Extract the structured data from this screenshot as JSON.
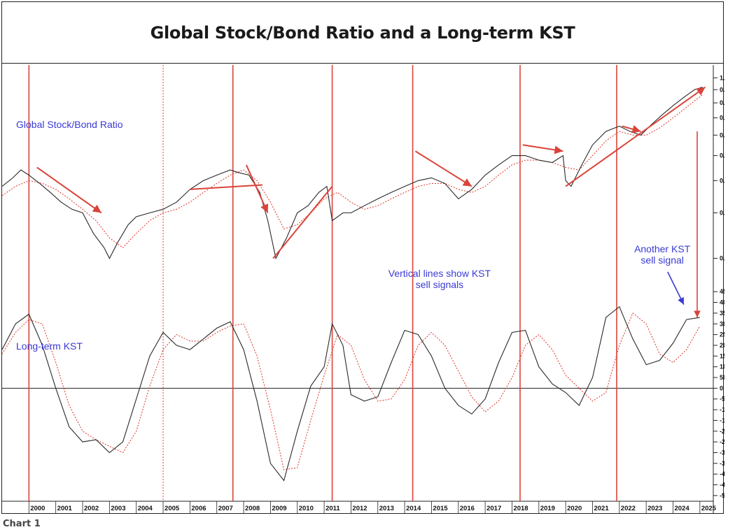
{
  "title": "Global Stock/Bond Ratio and a Long-term KST",
  "caption": "Chart 1",
  "colors": {
    "signal": "#d9443a",
    "price": "#2a2a2a",
    "average": "#e0453a",
    "annotation": "#3a3ad6"
  },
  "chart_data": {
    "type": "line",
    "x_range": [
      1999.0,
      2025.5
    ],
    "year_labels": [
      "2000",
      "2001",
      "2002",
      "2003",
      "2004",
      "2005",
      "2006",
      "2007",
      "2008",
      "2009",
      "2010",
      "2011",
      "2012",
      "2013",
      "2014",
      "2015",
      "2016",
      "2017",
      "2018",
      "2019",
      "2020",
      "2021",
      "2022",
      "2023",
      "2024",
      "2025"
    ],
    "sell_signals": [
      {
        "year": 2000.0,
        "style": "solid"
      },
      {
        "year": 2005.0,
        "style": "dotted"
      },
      {
        "year": 2007.6,
        "style": "solid"
      },
      {
        "year": 2011.3,
        "style": "solid"
      },
      {
        "year": 2014.3,
        "style": "solid"
      },
      {
        "year": 2018.3,
        "style": "solid"
      },
      {
        "year": 2021.9,
        "style": "solid"
      }
    ],
    "upper_panel": {
      "label": "Global Stock/Bond Ratio",
      "scale": "log",
      "ylim": [
        0.175,
        1.08
      ],
      "y_ticks": [
        "1.0",
        "0.9",
        "0.8",
        "0.7",
        "0.6",
        "0.5",
        "0.4",
        "0.3",
        "0.2"
      ],
      "series": [
        {
          "name": "Stock/Bond Ratio",
          "style": "solid",
          "x": [
            1999.0,
            1999.4,
            1999.7,
            2000.0,
            2000.4,
            2000.8,
            2001.2,
            2001.6,
            2002.0,
            2002.4,
            2002.8,
            2003.0,
            2003.3,
            2003.7,
            2004.0,
            2004.5,
            2005.0,
            2005.5,
            2006.0,
            2006.5,
            2007.0,
            2007.5,
            2007.8,
            2008.2,
            2008.6,
            2008.9,
            2009.2,
            2009.6,
            2010.0,
            2010.4,
            2010.8,
            2011.1,
            2011.3,
            2011.7,
            2012.0,
            2012.5,
            2013.0,
            2013.5,
            2014.0,
            2014.5,
            2015.0,
            2015.5,
            2016.0,
            2016.5,
            2017.0,
            2017.5,
            2018.0,
            2018.5,
            2019.0,
            2019.5,
            2019.9,
            2020.0,
            2020.2,
            2020.6,
            2021.0,
            2021.5,
            2022.0,
            2022.4,
            2022.8,
            2023.2,
            2023.6,
            2024.0,
            2024.4,
            2024.8,
            2025.1
          ],
          "values": [
            0.38,
            0.41,
            0.44,
            0.42,
            0.39,
            0.36,
            0.33,
            0.31,
            0.3,
            0.25,
            0.22,
            0.2,
            0.23,
            0.27,
            0.29,
            0.3,
            0.31,
            0.33,
            0.37,
            0.4,
            0.42,
            0.44,
            0.43,
            0.42,
            0.36,
            0.28,
            0.2,
            0.24,
            0.3,
            0.32,
            0.36,
            0.38,
            0.28,
            0.3,
            0.3,
            0.32,
            0.34,
            0.36,
            0.38,
            0.4,
            0.41,
            0.39,
            0.34,
            0.37,
            0.42,
            0.46,
            0.5,
            0.5,
            0.48,
            0.47,
            0.5,
            0.4,
            0.38,
            0.46,
            0.55,
            0.62,
            0.65,
            0.62,
            0.6,
            0.66,
            0.72,
            0.78,
            0.84,
            0.9,
            0.92
          ]
        },
        {
          "name": "Moving Average",
          "style": "dotted",
          "x": [
            1999.0,
            1999.5,
            2000.0,
            2000.5,
            2001.0,
            2001.5,
            2002.0,
            2002.5,
            2003.0,
            2003.5,
            2004.0,
            2004.5,
            2005.0,
            2005.5,
            2006.0,
            2006.5,
            2007.0,
            2007.5,
            2008.0,
            2008.5,
            2009.0,
            2009.5,
            2010.0,
            2010.5,
            2011.0,
            2011.5,
            2012.0,
            2012.5,
            2013.0,
            2013.5,
            2014.0,
            2014.5,
            2015.0,
            2015.5,
            2016.0,
            2016.5,
            2017.0,
            2017.5,
            2018.0,
            2018.5,
            2019.0,
            2019.5,
            2020.0,
            2020.5,
            2021.0,
            2021.5,
            2022.0,
            2022.5,
            2023.0,
            2023.5,
            2024.0,
            2024.5,
            2025.1
          ],
          "values": [
            0.35,
            0.38,
            0.4,
            0.39,
            0.37,
            0.34,
            0.31,
            0.28,
            0.24,
            0.22,
            0.25,
            0.28,
            0.3,
            0.31,
            0.33,
            0.36,
            0.39,
            0.42,
            0.44,
            0.4,
            0.33,
            0.26,
            0.27,
            0.3,
            0.34,
            0.36,
            0.33,
            0.31,
            0.32,
            0.34,
            0.36,
            0.38,
            0.39,
            0.39,
            0.37,
            0.36,
            0.38,
            0.42,
            0.46,
            0.48,
            0.48,
            0.47,
            0.45,
            0.44,
            0.5,
            0.57,
            0.62,
            0.6,
            0.6,
            0.64,
            0.7,
            0.77,
            0.86
          ]
        }
      ]
    },
    "lower_panel": {
      "label": "Long-term KST",
      "scale": "linear",
      "ylim": [
        -520,
        480
      ],
      "y_ticks": [
        450,
        400,
        350,
        300,
        250,
        200,
        150,
        100,
        50,
        0,
        -50,
        -100,
        -150,
        -200,
        -250,
        -300,
        -350,
        -400,
        -450,
        -500
      ],
      "series": [
        {
          "name": "KST",
          "style": "solid",
          "x": [
            1999.0,
            1999.5,
            2000.0,
            2000.5,
            2001.0,
            2001.5,
            2002.0,
            2002.5,
            2003.0,
            2003.5,
            2004.0,
            2004.5,
            2005.0,
            2005.5,
            2006.0,
            2006.5,
            2007.0,
            2007.5,
            2008.0,
            2008.5,
            2009.0,
            2009.5,
            2010.0,
            2010.5,
            2011.0,
            2011.3,
            2011.7,
            2012.0,
            2012.5,
            2013.0,
            2013.5,
            2014.0,
            2014.5,
            2015.0,
            2015.5,
            2016.0,
            2016.5,
            2017.0,
            2017.5,
            2018.0,
            2018.5,
            2019.0,
            2019.5,
            2020.0,
            2020.5,
            2021.0,
            2021.5,
            2022.0,
            2022.5,
            2023.0,
            2023.5,
            2024.0,
            2024.5,
            2025.0
          ],
          "values": [
            180,
            300,
            345,
            200,
            0,
            -180,
            -250,
            -240,
            -300,
            -250,
            -50,
            150,
            260,
            200,
            180,
            230,
            280,
            310,
            180,
            -60,
            -350,
            -430,
            -200,
            10,
            100,
            300,
            200,
            -30,
            -60,
            -40,
            120,
            270,
            250,
            150,
            0,
            -80,
            -120,
            -50,
            120,
            260,
            270,
            100,
            20,
            -20,
            -80,
            50,
            330,
            380,
            230,
            110,
            130,
            210,
            320,
            330
          ]
        },
        {
          "name": "Signal MA",
          "style": "dotted",
          "x": [
            1999.0,
            1999.5,
            2000.0,
            2000.5,
            2001.0,
            2001.5,
            2002.0,
            2002.5,
            2003.0,
            2003.5,
            2004.0,
            2004.5,
            2005.0,
            2005.5,
            2006.0,
            2006.5,
            2007.0,
            2007.5,
            2008.0,
            2008.5,
            2009.0,
            2009.5,
            2010.0,
            2010.5,
            2011.0,
            2011.5,
            2012.0,
            2012.5,
            2013.0,
            2013.5,
            2014.0,
            2014.5,
            2015.0,
            2015.5,
            2016.0,
            2016.5,
            2017.0,
            2017.5,
            2018.0,
            2018.5,
            2019.0,
            2019.5,
            2020.0,
            2020.5,
            2021.0,
            2021.5,
            2022.0,
            2022.5,
            2023.0,
            2023.5,
            2024.0,
            2024.5,
            2025.0
          ],
          "values": [
            160,
            260,
            320,
            300,
            120,
            -80,
            -200,
            -240,
            -270,
            -300,
            -200,
            10,
            180,
            250,
            220,
            220,
            260,
            290,
            300,
            150,
            -100,
            -380,
            -370,
            -150,
            60,
            250,
            200,
            40,
            -60,
            -50,
            40,
            200,
            260,
            200,
            80,
            -40,
            -110,
            -60,
            50,
            200,
            250,
            180,
            60,
            0,
            -60,
            -20,
            200,
            350,
            300,
            160,
            120,
            180,
            290
          ]
        }
      ]
    },
    "annotations": [
      "Global Stock/Bond Ratio",
      "Long-term KST",
      "Vertical lines show KST\nsell signals",
      "Another KST\nsell signal"
    ]
  }
}
